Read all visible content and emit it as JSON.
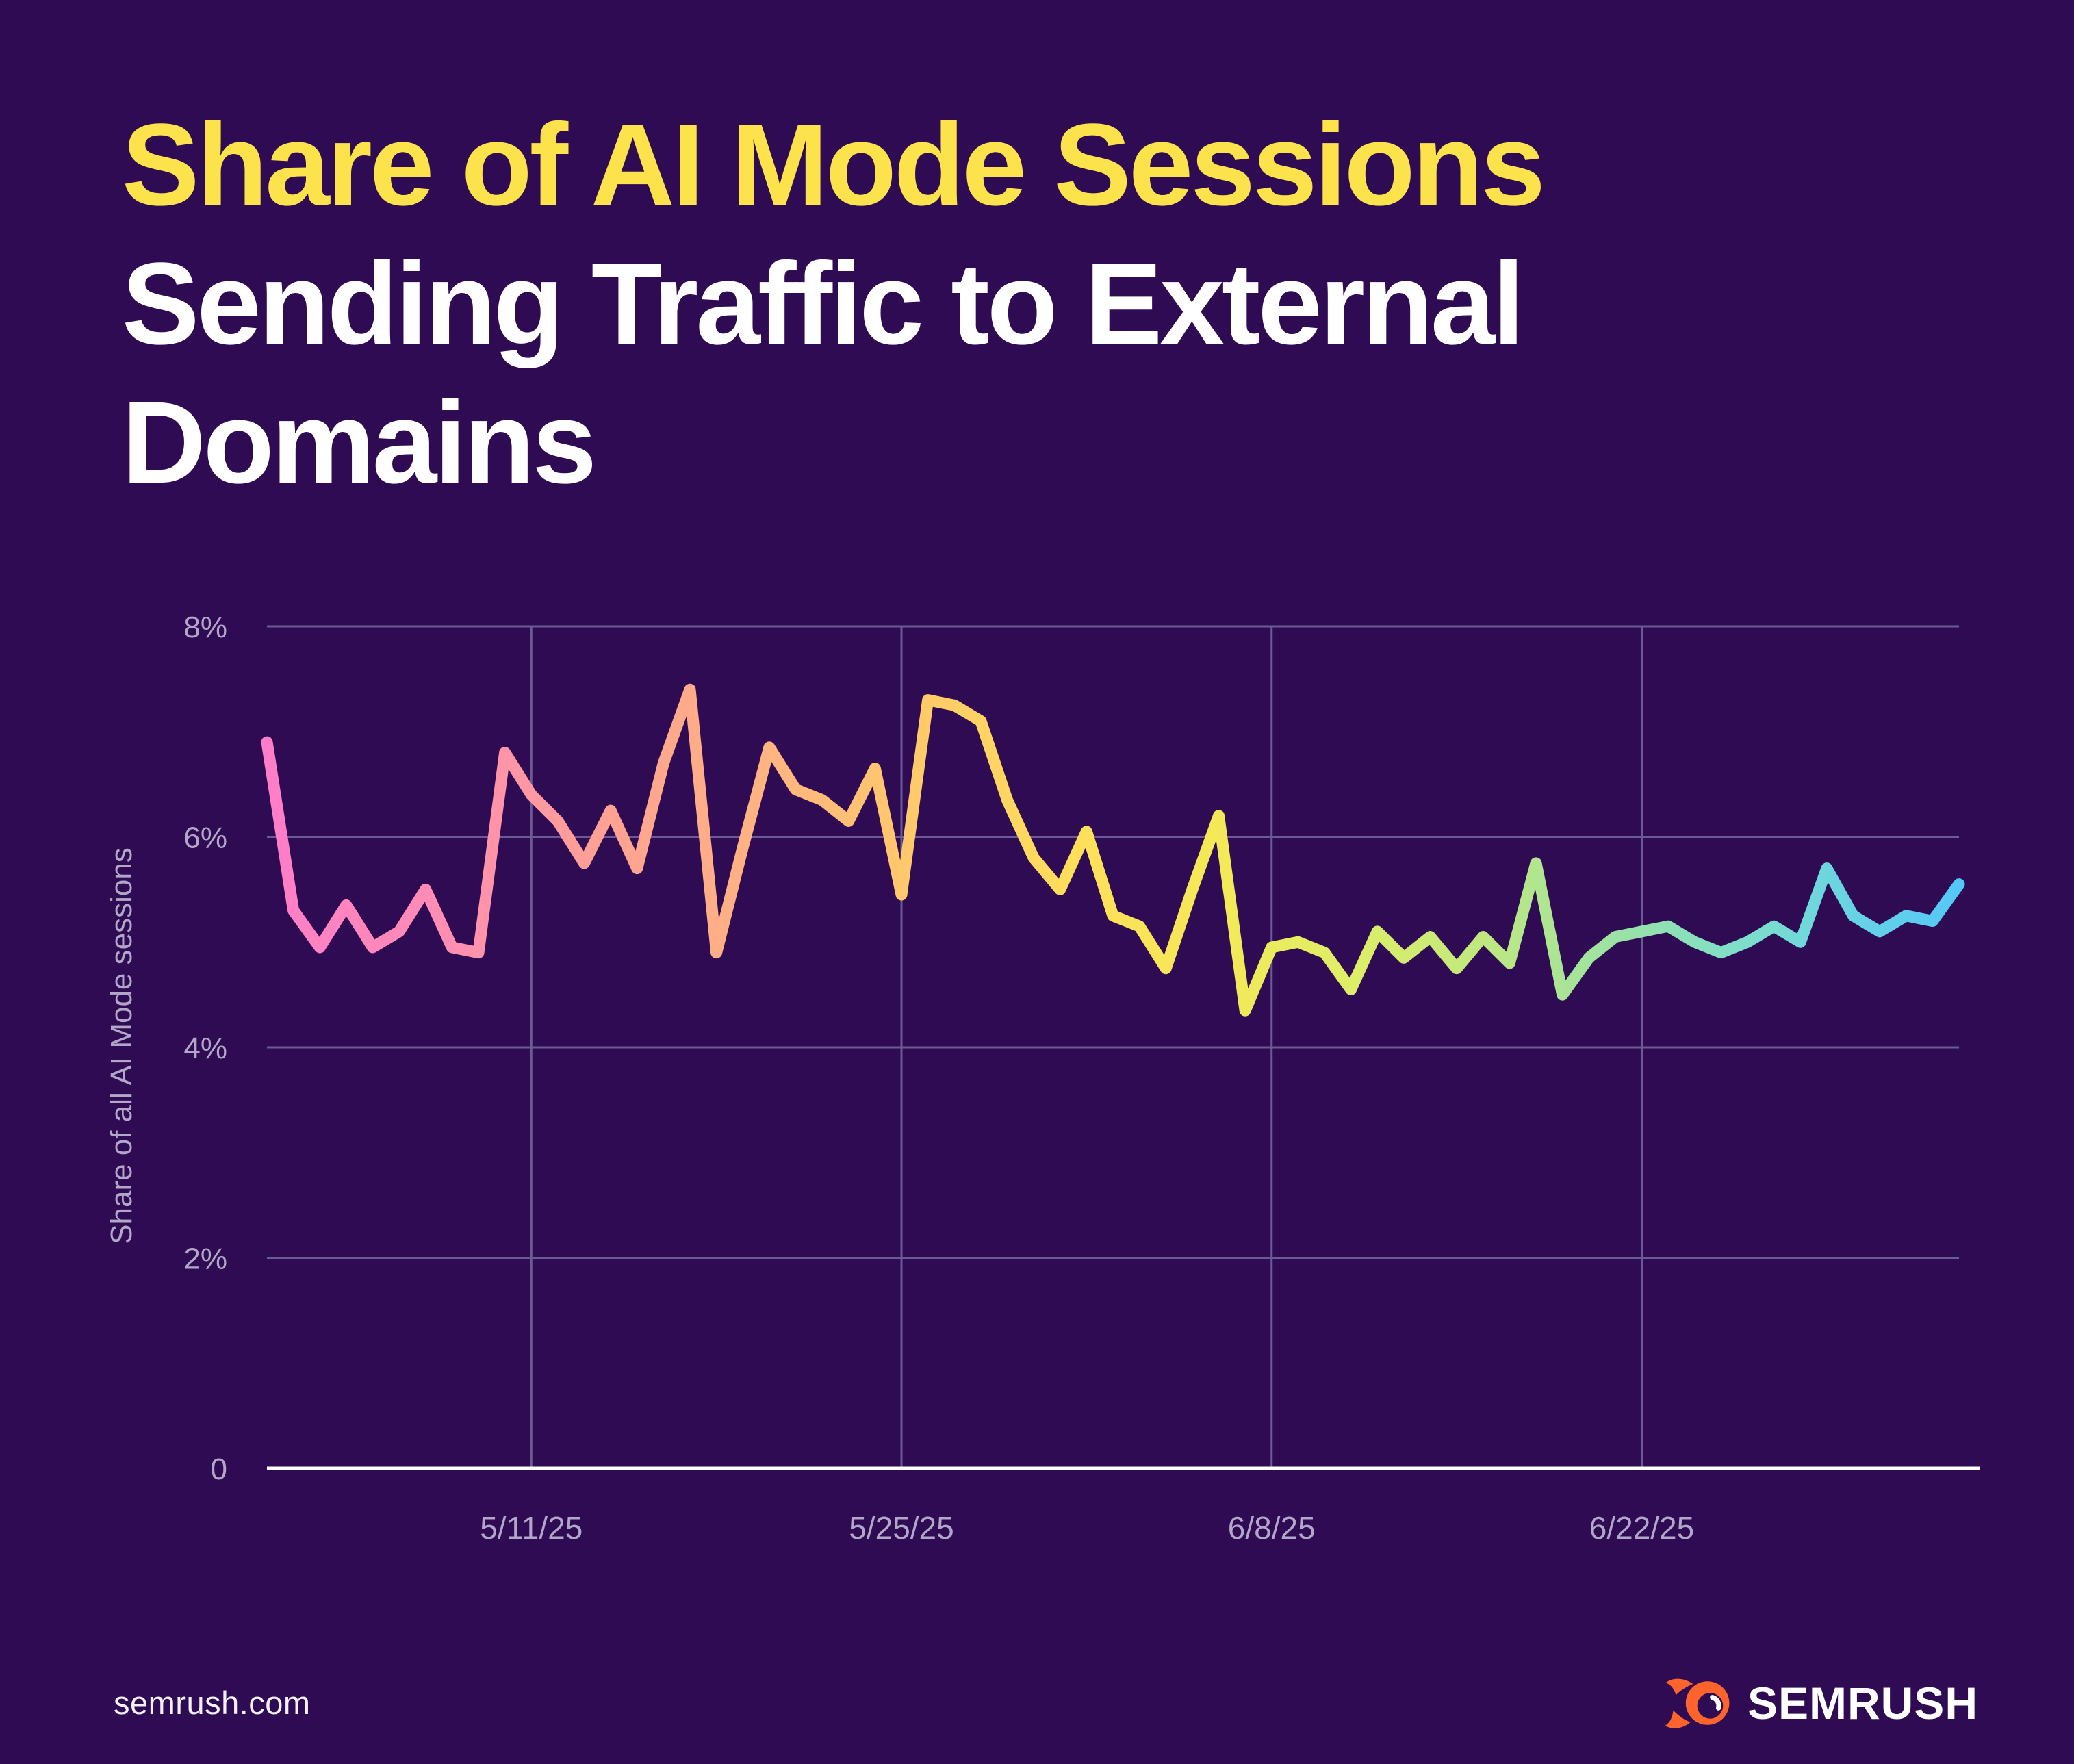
{
  "title": {
    "line1": "Share of AI Mode Sessions",
    "line2": "Sending Traffic to External",
    "line3": "Domains"
  },
  "footer": {
    "site": "semrush.com",
    "brand": "SEMRUSH"
  },
  "colors": {
    "background": "#2E0B53",
    "title_highlight": "#FCE34B",
    "title_text": "#FFFFFF",
    "grid": "#6B5A94",
    "axis_text": "#B3A7C9",
    "baseline": "#FFFFFF",
    "logo_orange": "#FF642D",
    "line_gradient": [
      {
        "offset": 0.0,
        "color": "#FF7DC9"
      },
      {
        "offset": 0.1,
        "color": "#FF8DB4"
      },
      {
        "offset": 0.2,
        "color": "#FFA193"
      },
      {
        "offset": 0.3,
        "color": "#FFB580"
      },
      {
        "offset": 0.4,
        "color": "#FFCE66"
      },
      {
        "offset": 0.48,
        "color": "#FFDF5A"
      },
      {
        "offset": 0.56,
        "color": "#F4E957"
      },
      {
        "offset": 0.64,
        "color": "#DFEE67"
      },
      {
        "offset": 0.72,
        "color": "#BFE87F"
      },
      {
        "offset": 0.8,
        "color": "#9AE2A6"
      },
      {
        "offset": 0.87,
        "color": "#7EDFC9"
      },
      {
        "offset": 0.94,
        "color": "#67D2E6"
      },
      {
        "offset": 1.0,
        "color": "#54C8F6"
      }
    ]
  },
  "chart_data": {
    "type": "line",
    "title": "Share of AI Mode Sessions Sending Traffic to External Domains",
    "xlabel": "",
    "ylabel": "Share of all AI Mode sessions",
    "ylim": [
      0,
      8
    ],
    "grid": true,
    "legend": "none",
    "y_ticks": [
      {
        "label": "0",
        "value": 0
      },
      {
        "label": "2%",
        "value": 2
      },
      {
        "label": "4%",
        "value": 4
      },
      {
        "label": "6%",
        "value": 6
      },
      {
        "label": "8%",
        "value": 8
      }
    ],
    "x_ticks": [
      "5/11/25",
      "5/25/25",
      "6/8/25",
      "6/22/25"
    ],
    "series": [
      {
        "name": "Share of AI Mode sessions sending traffic to external domains (%)",
        "x": [
          "5/1/25",
          "5/2/25",
          "5/3/25",
          "5/4/25",
          "5/5/25",
          "5/6/25",
          "5/7/25",
          "5/8/25",
          "5/9/25",
          "5/10/25",
          "5/11/25",
          "5/12/25",
          "5/13/25",
          "5/14/25",
          "5/15/25",
          "5/16/25",
          "5/17/25",
          "5/18/25",
          "5/19/25",
          "5/20/25",
          "5/21/25",
          "5/22/25",
          "5/23/25",
          "5/24/25",
          "5/25/25",
          "5/26/25",
          "5/27/25",
          "5/28/25",
          "5/29/25",
          "5/30/25",
          "5/31/25",
          "6/1/25",
          "6/2/25",
          "6/3/25",
          "6/4/25",
          "6/5/25",
          "6/6/25",
          "6/7/25",
          "6/8/25",
          "6/9/25",
          "6/10/25",
          "6/11/25",
          "6/12/25",
          "6/13/25",
          "6/14/25",
          "6/15/25",
          "6/16/25",
          "6/17/25",
          "6/18/25",
          "6/19/25",
          "6/20/25",
          "6/21/25",
          "6/22/25",
          "6/23/25",
          "6/24/25",
          "6/25/25",
          "6/26/25",
          "6/27/25",
          "6/28/25",
          "6/29/25",
          "6/30/25",
          "7/1/25",
          "7/2/25",
          "7/3/25",
          "7/4/25"
        ],
        "values": [
          6.9,
          5.3,
          4.95,
          5.35,
          4.95,
          5.1,
          5.5,
          4.95,
          4.9,
          6.8,
          6.4,
          6.15,
          5.75,
          6.25,
          5.7,
          6.7,
          7.4,
          4.9,
          5.9,
          6.85,
          6.45,
          6.35,
          6.15,
          6.65,
          5.45,
          7.3,
          7.25,
          7.1,
          6.35,
          5.8,
          5.5,
          6.05,
          5.25,
          5.15,
          4.75,
          5.5,
          6.2,
          4.35,
          4.95,
          5.0,
          4.9,
          4.55,
          5.1,
          4.85,
          5.05,
          4.75,
          5.05,
          4.8,
          5.75,
          4.5,
          4.85,
          5.05,
          5.1,
          5.15,
          5.0,
          4.9,
          5.0,
          5.15,
          5.0,
          5.7,
          5.25,
          5.1,
          5.25,
          5.2,
          5.55
        ]
      }
    ]
  }
}
